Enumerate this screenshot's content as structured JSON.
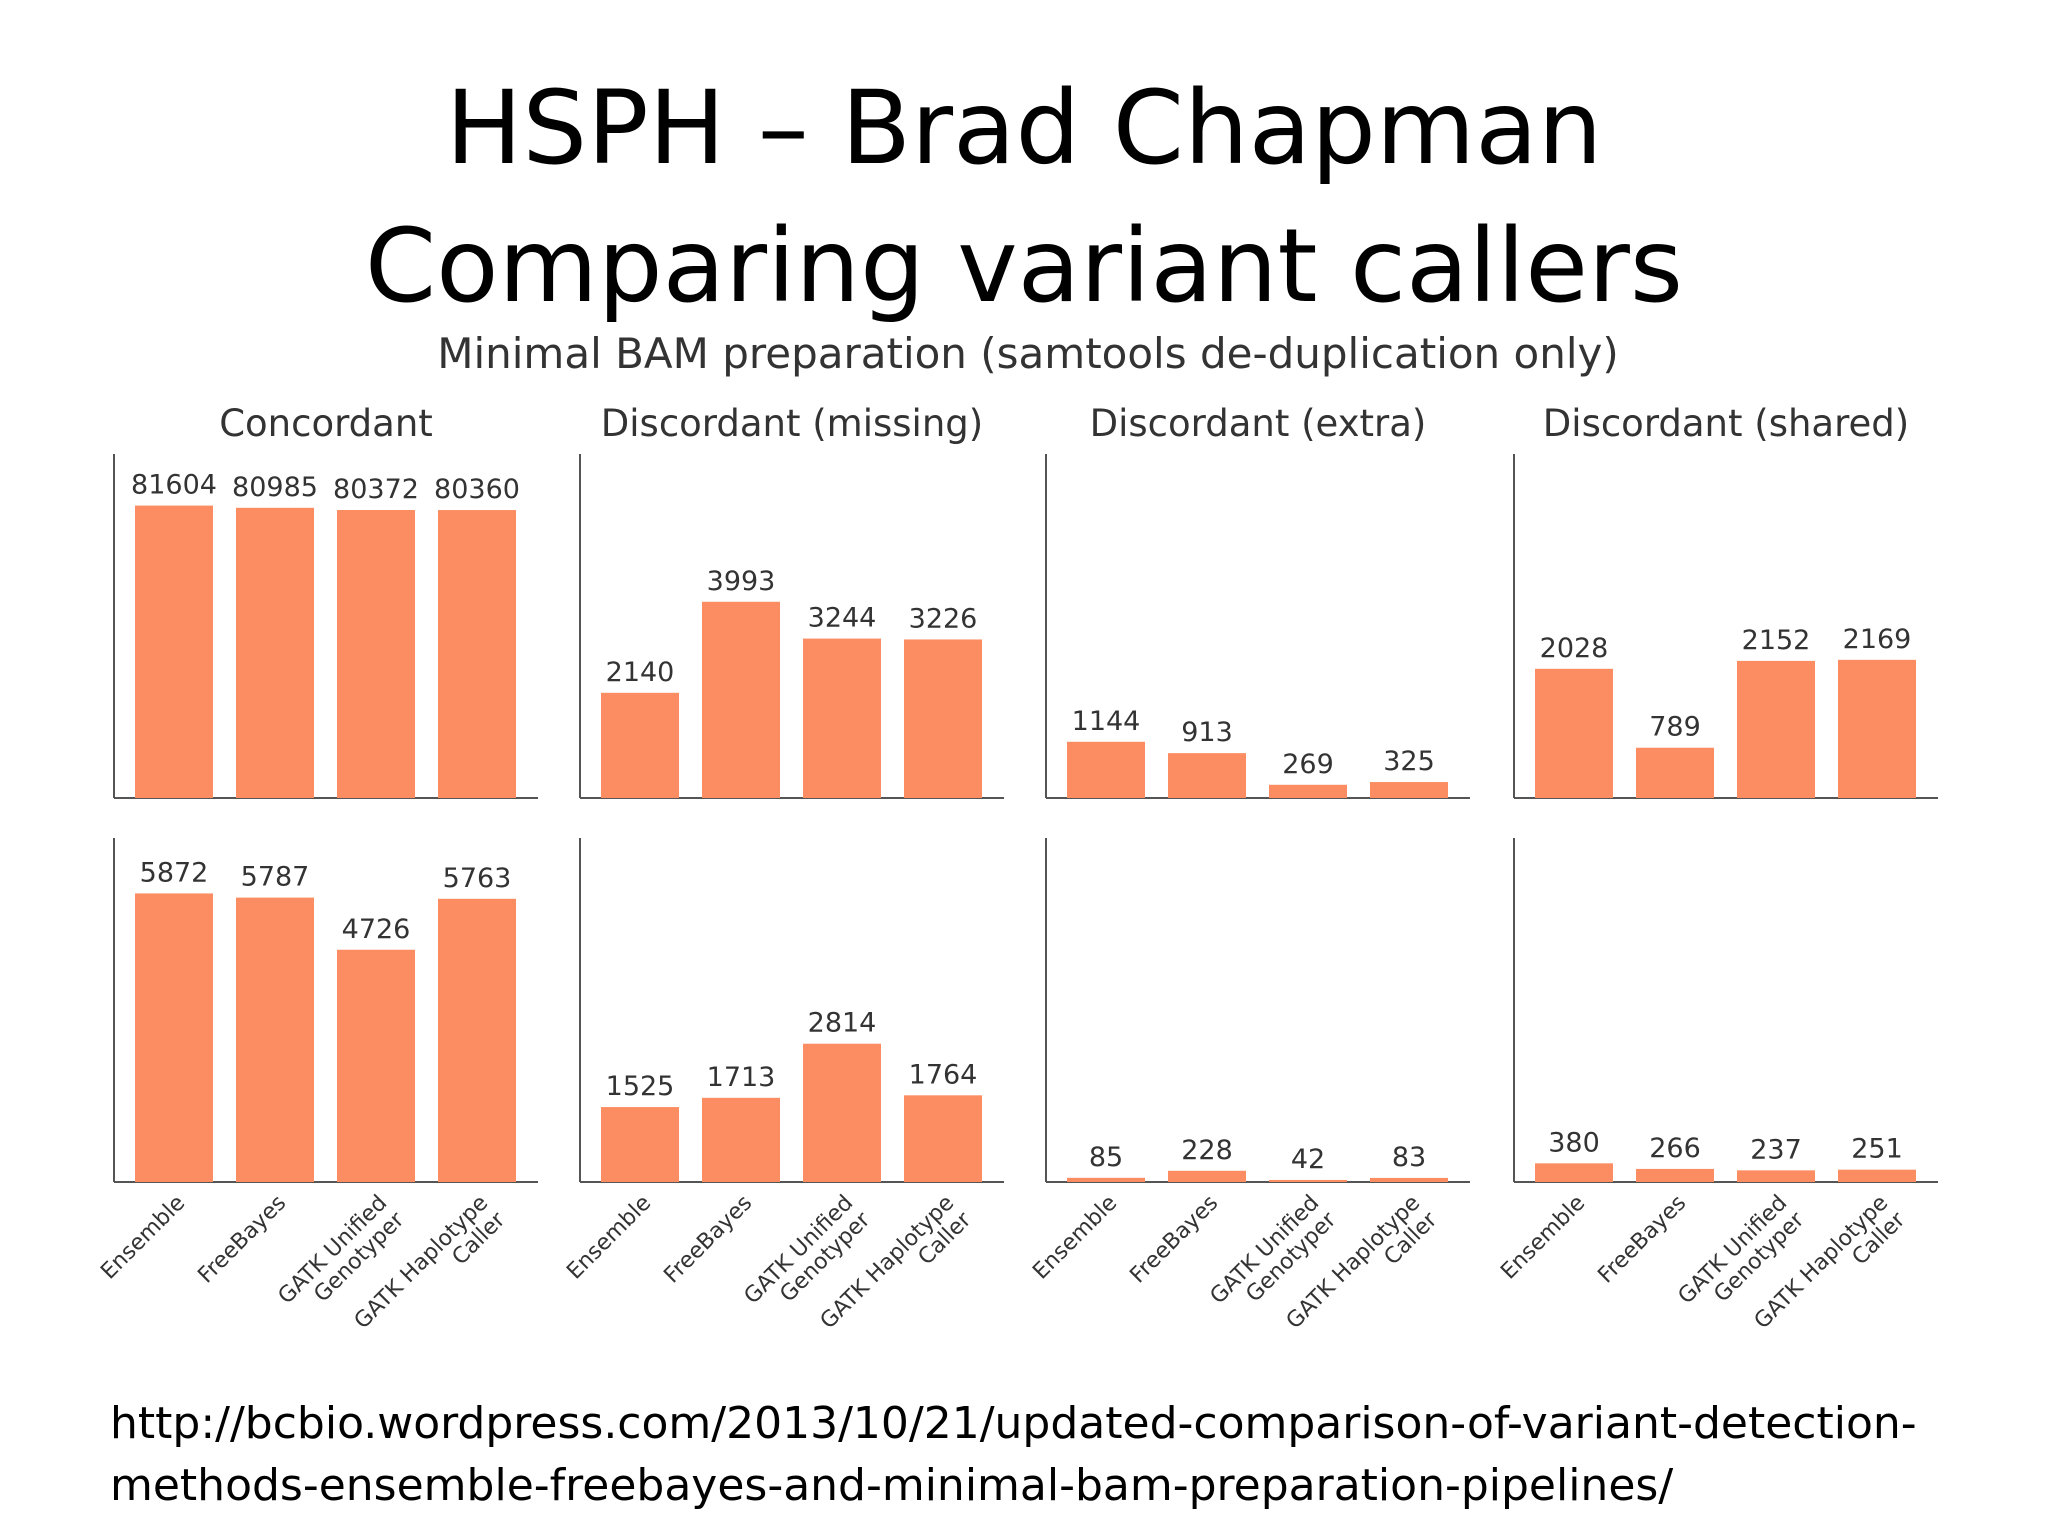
{
  "slide": {
    "title_line1": "HSPH – Brad Chapman",
    "title_line2": "Comparing variant callers",
    "source_url_line1": "http://bcbio.wordpress.com/2013/10/21/updated-comparison-of-variant-detection-",
    "source_url_line2": "methods-ensemble-freebayes-and-minimal-bam-preparation-pipelines/"
  },
  "colors": {
    "bar": "#fc8d62",
    "axis": "#555555",
    "text": "#333333"
  },
  "chart_data": {
    "type": "bar",
    "suptitle": "Minimal BAM preparation (samtools de-duplication only)",
    "categories": [
      "Ensemble",
      "FreeBayes",
      "GATK Unified\nGenotyper",
      "GATK Haplotype\nCaller"
    ],
    "panels": [
      {
        "title": "Concordant",
        "row": 0,
        "col": 0,
        "values": [
          81604,
          80985,
          80372,
          80360
        ],
        "ylim": [
          0,
          96000
        ]
      },
      {
        "title": "Discordant (missing)",
        "row": 0,
        "col": 1,
        "values": [
          2140,
          3993,
          3244,
          3226
        ],
        "ylim": [
          0,
          7000
        ]
      },
      {
        "title": "Discordant (extra)",
        "row": 0,
        "col": 2,
        "values": [
          1144,
          913,
          269,
          325
        ],
        "ylim": [
          0,
          7000
        ]
      },
      {
        "title": "Discordant (shared)",
        "row": 0,
        "col": 3,
        "values": [
          2028,
          789,
          2152,
          2169
        ],
        "ylim": [
          0,
          5400
        ]
      },
      {
        "title": "",
        "row": 1,
        "col": 0,
        "values": [
          5872,
          5787,
          4726,
          5763
        ],
        "ylim": [
          0,
          7000
        ]
      },
      {
        "title": "",
        "row": 1,
        "col": 1,
        "values": [
          1525,
          1713,
          2814,
          1764
        ],
        "ylim": [
          0,
          7000
        ]
      },
      {
        "title": "",
        "row": 1,
        "col": 2,
        "values": [
          85,
          228,
          42,
          83
        ],
        "ylim": [
          0,
          7000
        ]
      },
      {
        "title": "",
        "row": 1,
        "col": 3,
        "values": [
          380,
          266,
          237,
          251
        ],
        "ylim": [
          0,
          7000
        ]
      }
    ]
  }
}
